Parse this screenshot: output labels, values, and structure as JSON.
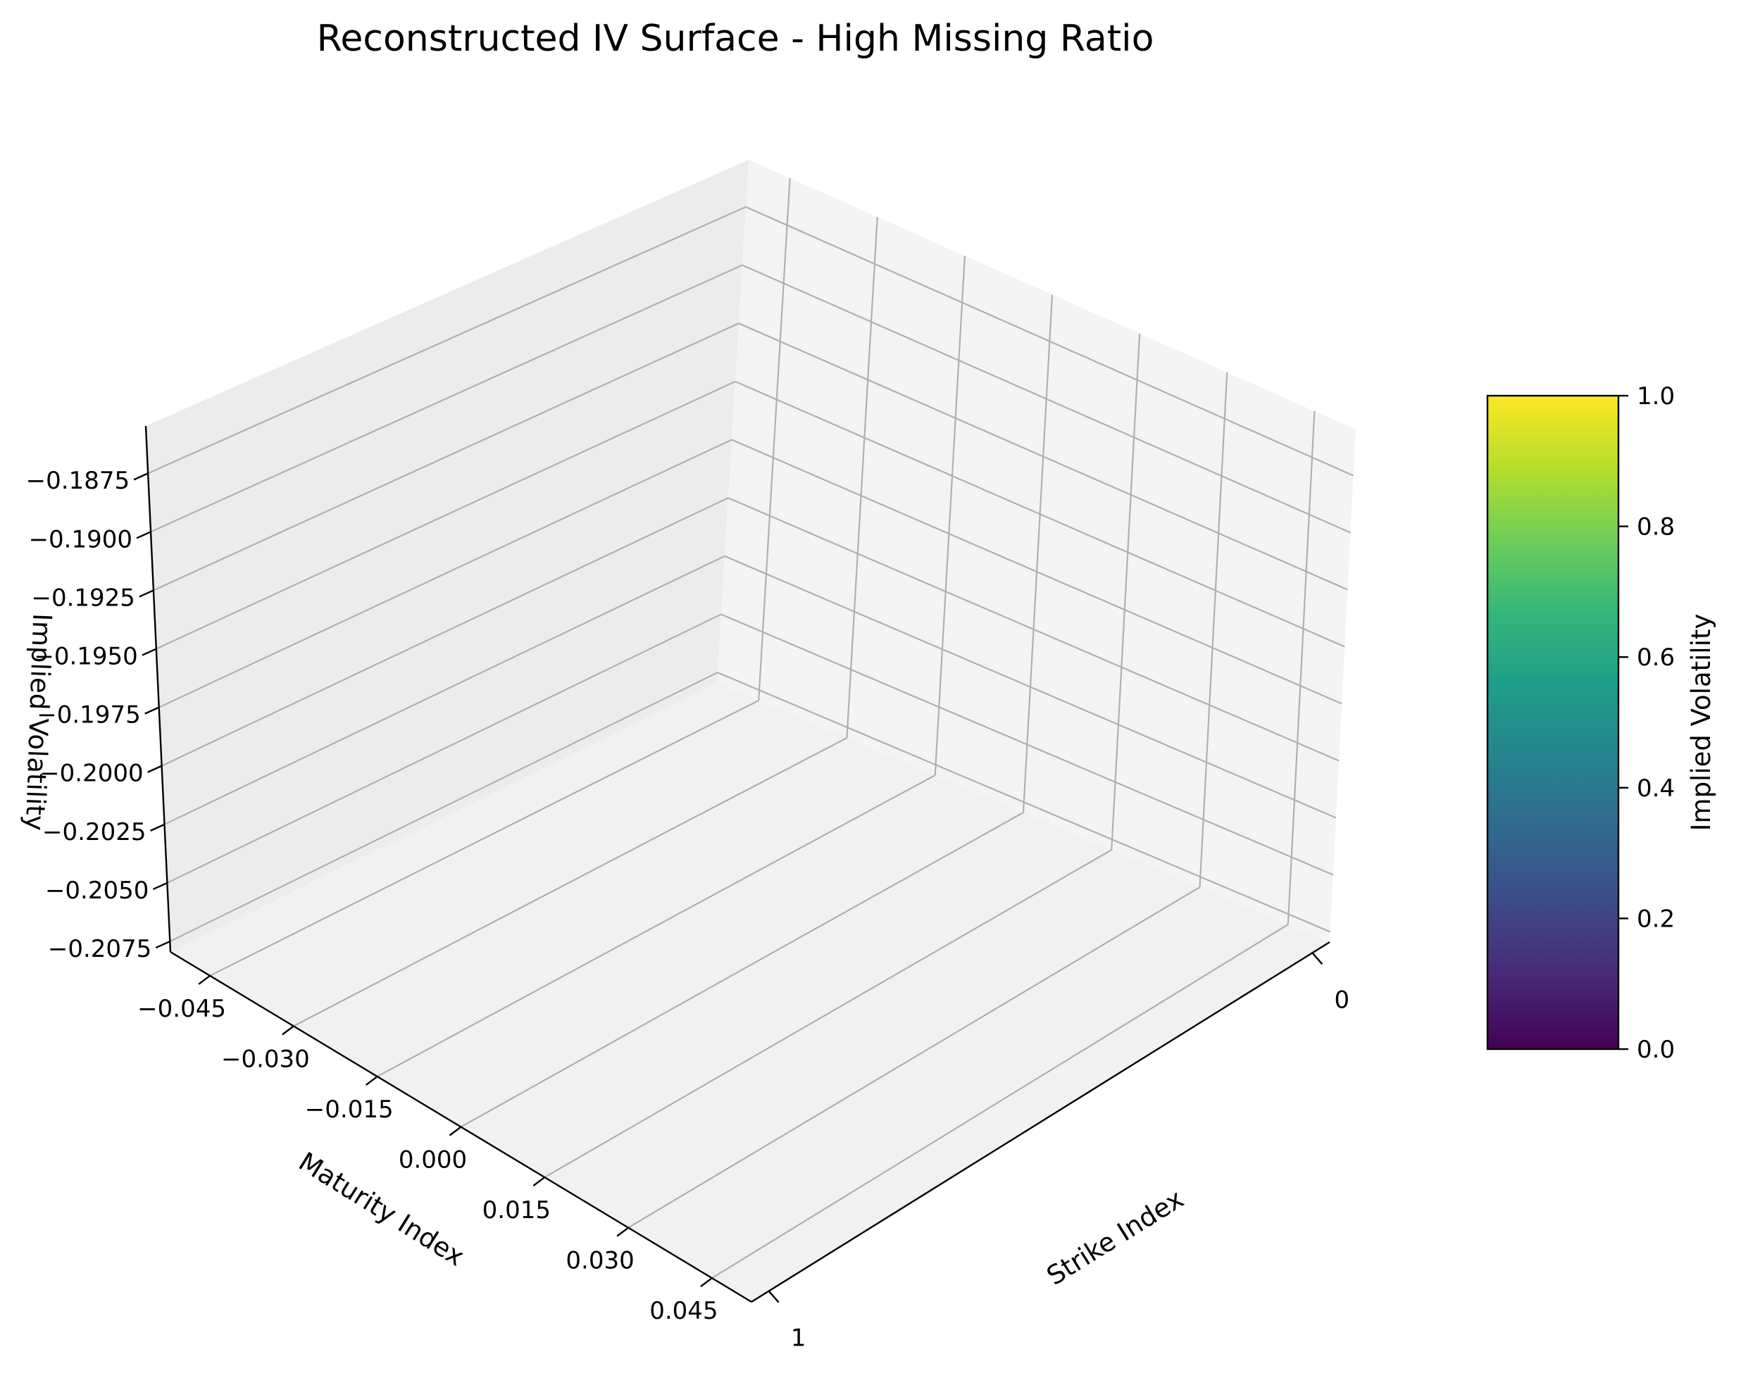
{
  "chart_data": {
    "type": "surface",
    "title": "Reconstructed IV Surface - High Missing Ratio",
    "xlabel": "Strike Index",
    "ylabel": "Maturity Index",
    "zlabel": "Implied Volatility",
    "x_ticks": [
      "0",
      "1"
    ],
    "y_ticks": [
      "−0.045",
      "−0.030",
      "−0.015",
      "0.000",
      "0.015",
      "0.030",
      "0.045"
    ],
    "z_ticks": [
      "−0.2075",
      "−0.2050",
      "−0.2025",
      "−0.2000",
      "−0.1975",
      "−0.1950",
      "−0.1925",
      "−0.1900",
      "−0.1875"
    ],
    "xlim": [
      0,
      1
    ],
    "ylim": [
      -0.05,
      0.05
    ],
    "zlim": [
      -0.2075,
      -0.1875
    ],
    "grid": true,
    "series": [],
    "colorbar": {
      "label": "Implied Volatility",
      "ticks": [
        "0.0",
        "0.2",
        "0.4",
        "0.6",
        "0.8",
        "1.0"
      ],
      "range": [
        0,
        1
      ],
      "colormap": "viridis",
      "colors": [
        "#440154",
        "#482878",
        "#3e4989",
        "#31688e",
        "#26828e",
        "#1f9e89",
        "#35b779",
        "#6ece58",
        "#b5de2b",
        "#fde725"
      ]
    }
  }
}
